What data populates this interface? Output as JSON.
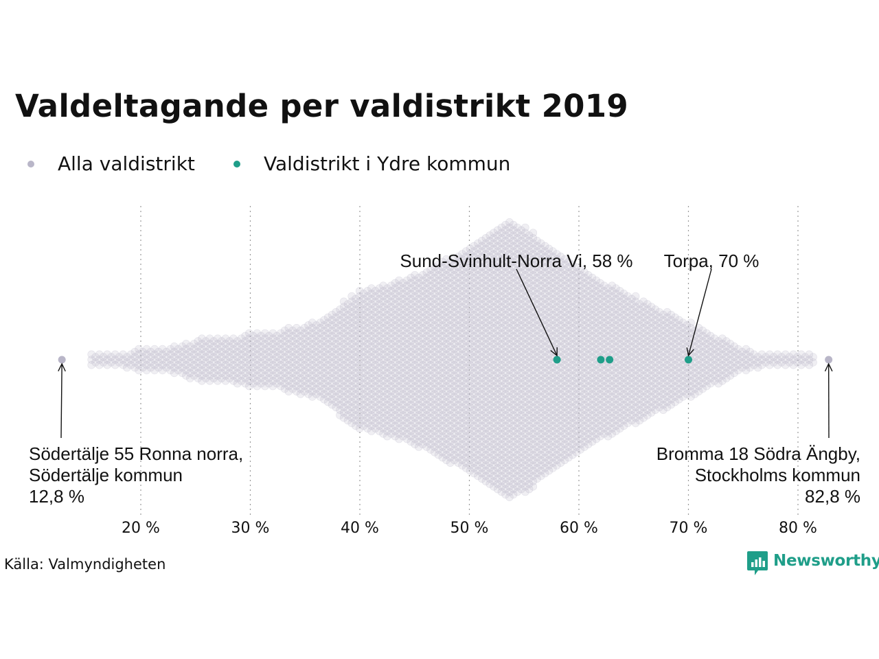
{
  "title": "Valdeltagande per valdistrikt 2019",
  "legend": {
    "items": [
      {
        "label": "Alla valdistrikt",
        "color": "#b9b6c8"
      },
      {
        "label": "Valdistrikt i Ydre kommun",
        "color": "#1f9e89"
      }
    ]
  },
  "chart_data": {
    "type": "scatter",
    "subtype": "beeswarm",
    "title": "Valdeltagande per valdistrikt 2019",
    "xlabel": "",
    "ylabel": "",
    "x_unit": "%",
    "xlim": [
      12,
      84
    ],
    "x_ticks": [
      20,
      30,
      40,
      50,
      60,
      70,
      80
    ],
    "x_tick_labels": [
      "20 %",
      "30 %",
      "40 %",
      "50 %",
      "60 %",
      "70 %",
      "80 %"
    ],
    "grid": "vertical dotted",
    "legend_position": "top-left",
    "series": [
      {
        "name": "Alla valdistrikt",
        "color": "#b9b6c8",
        "distribution_profile": [
          [
            16,
            1
          ],
          [
            18,
            1
          ],
          [
            20,
            2
          ],
          [
            22,
            2
          ],
          [
            24,
            3
          ],
          [
            26,
            4
          ],
          [
            28,
            4
          ],
          [
            30,
            5
          ],
          [
            32,
            5
          ],
          [
            34,
            6
          ],
          [
            36,
            7
          ],
          [
            38,
            10
          ],
          [
            40,
            13
          ],
          [
            42,
            14
          ],
          [
            44,
            15
          ],
          [
            46,
            17
          ],
          [
            48,
            19
          ],
          [
            50,
            21
          ],
          [
            52,
            24
          ],
          [
            53.5,
            26
          ],
          [
            55,
            25
          ],
          [
            57,
            22
          ],
          [
            59,
            19
          ],
          [
            61,
            16
          ],
          [
            63,
            14
          ],
          [
            65,
            12
          ],
          [
            67,
            10
          ],
          [
            69,
            8
          ],
          [
            71,
            6
          ],
          [
            73,
            4
          ],
          [
            75,
            2
          ],
          [
            77,
            1
          ],
          [
            79,
            1
          ],
          [
            81,
            1
          ]
        ],
        "extremes": [
          12.8,
          82.8
        ]
      },
      {
        "name": "Valdistrikt i Ydre kommun",
        "color": "#1f9e89",
        "values": [
          58.0,
          62.0,
          62.8,
          70.0
        ]
      }
    ],
    "annotations": [
      {
        "lines": [
          "Sund-Svinhult-Norra Vi, 58 %"
        ],
        "x": 58.0
      },
      {
        "lines": [
          "Torpa, 70 %"
        ],
        "x": 70.0
      },
      {
        "lines": [
          "Södertälje 55 Ronna norra,",
          "Södertälje kommun",
          "12,8 %"
        ],
        "x": 12.8
      },
      {
        "lines": [
          "Bromma 18 Södra Ängby,",
          "Stockholms kommun",
          "82,8 %"
        ],
        "x": 82.8
      }
    ]
  },
  "source": "Källa: Valmyndigheten",
  "brand": {
    "name": "Newsworthy",
    "color": "#1f9e89",
    "icon": "bar-chart-badge-icon"
  }
}
